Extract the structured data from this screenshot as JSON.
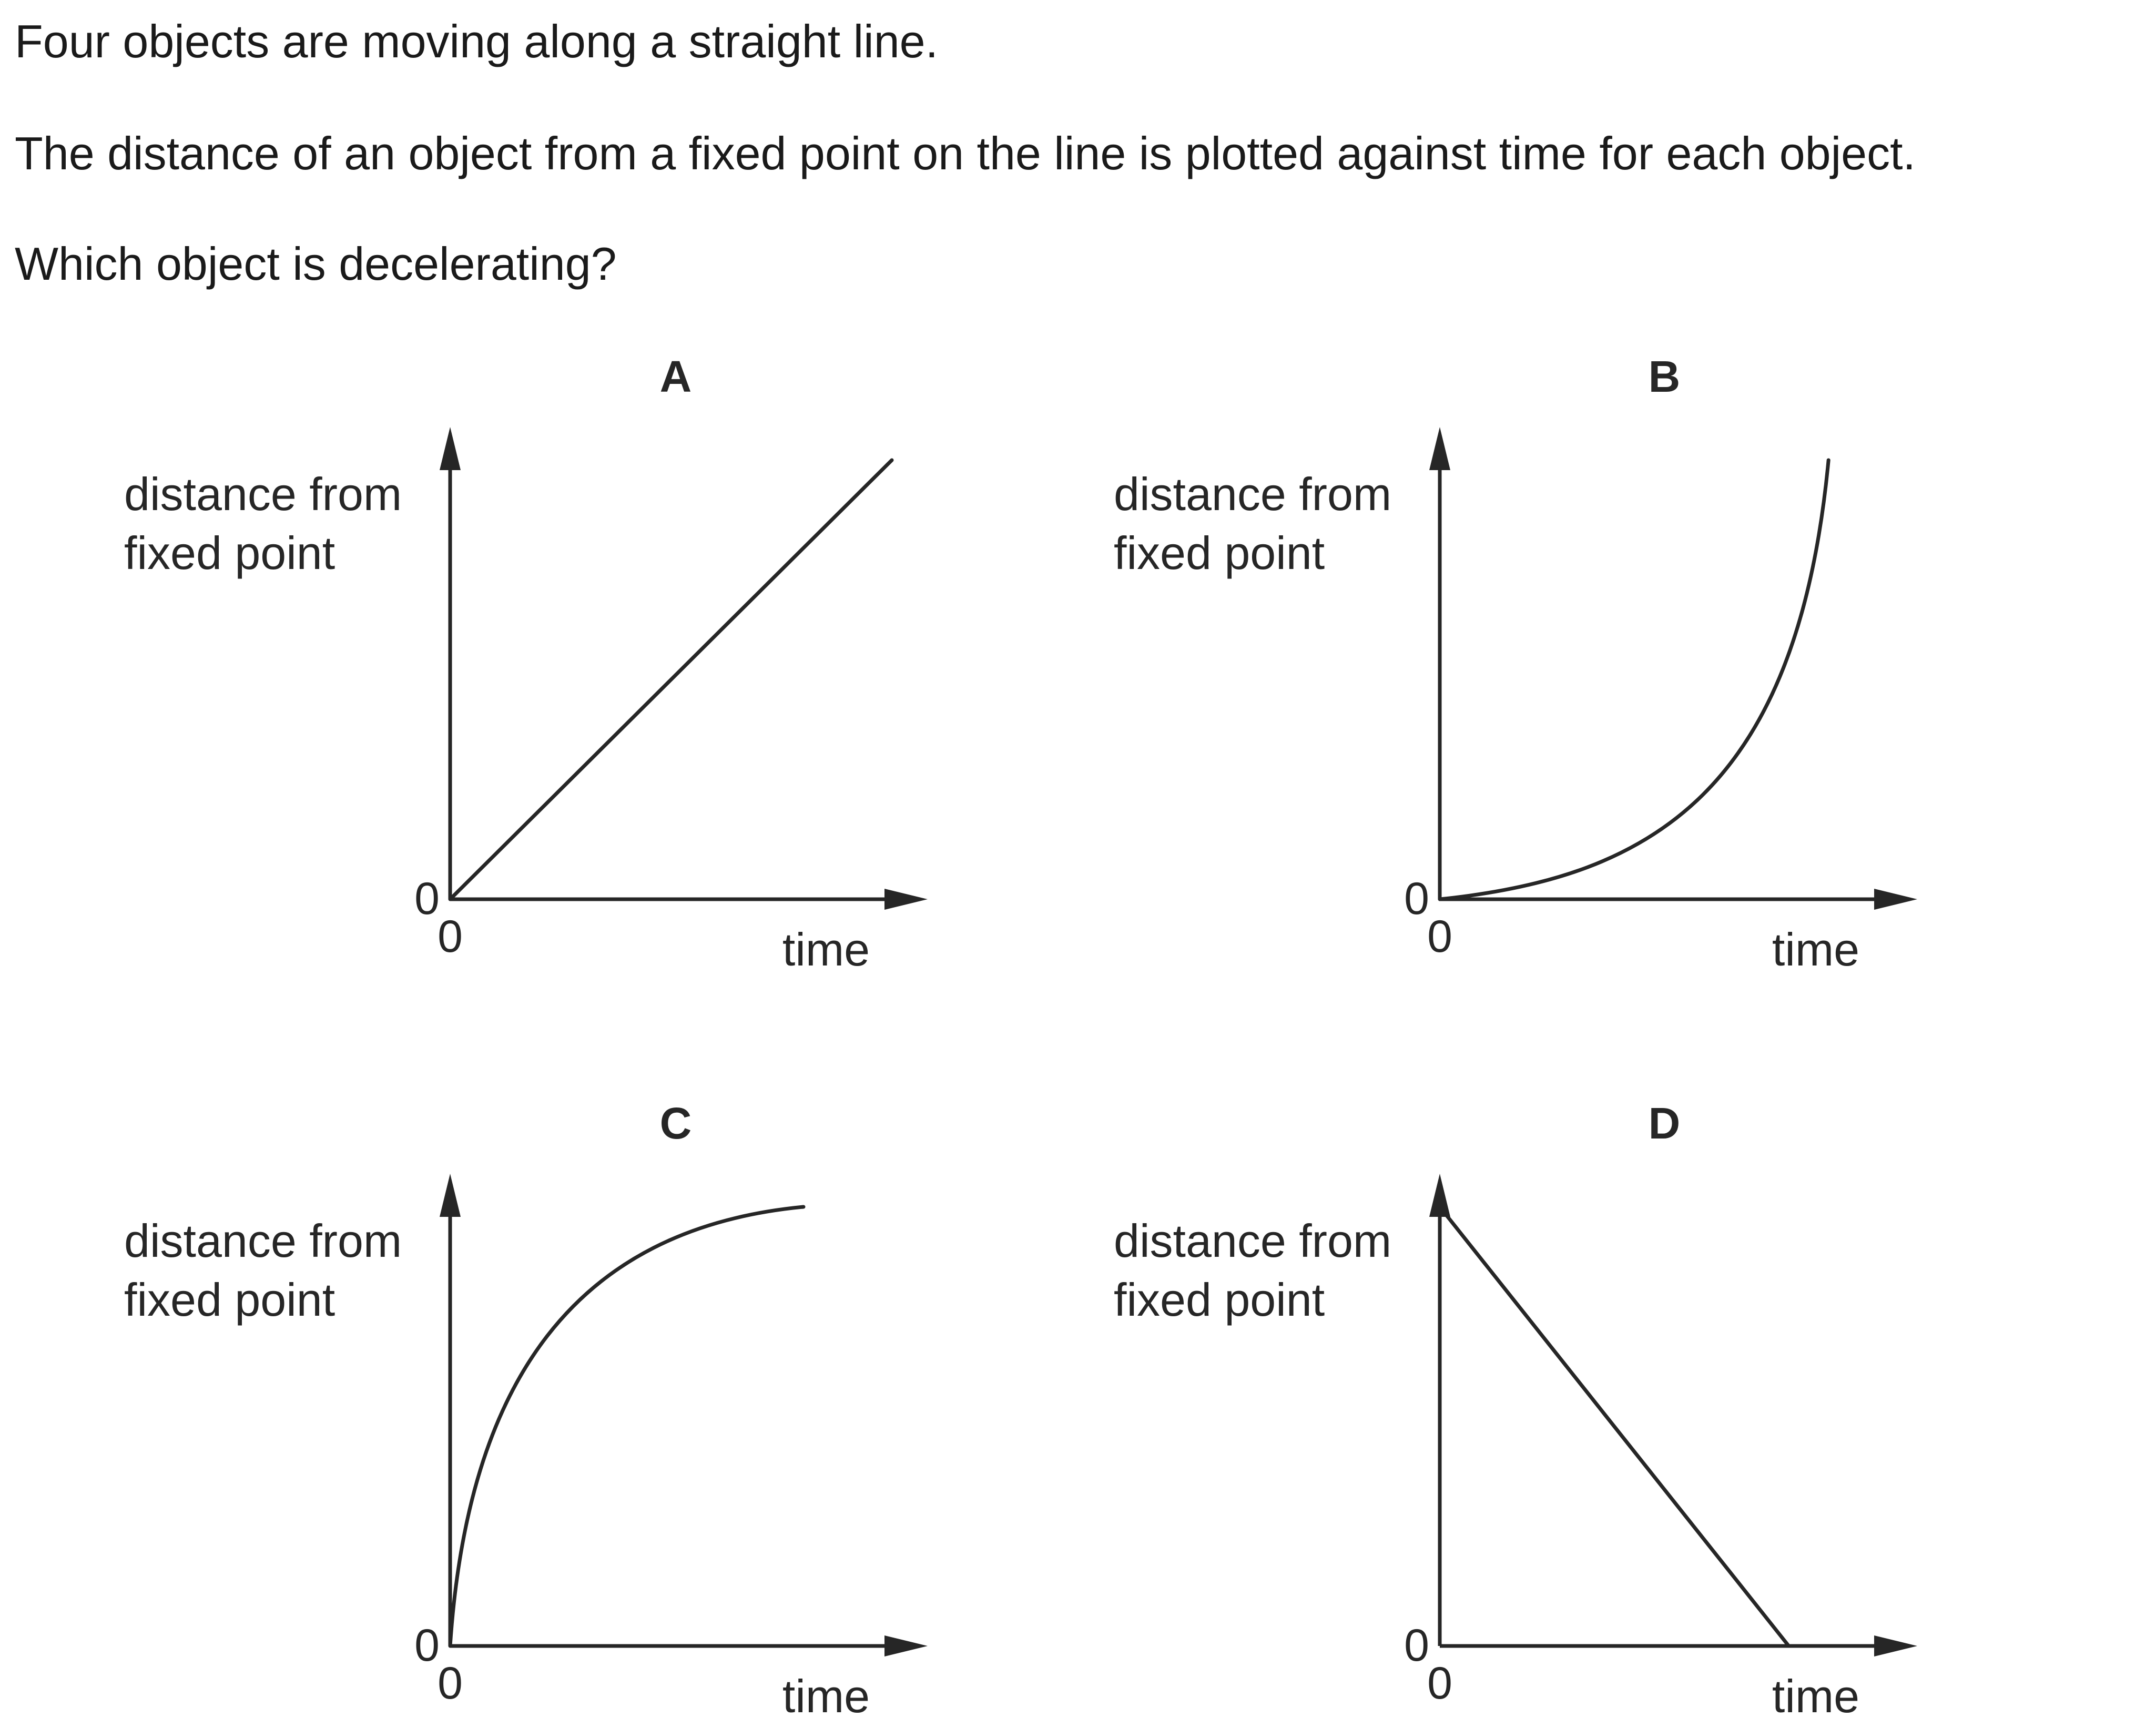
{
  "question": {
    "line1": "Four objects are moving along a straight line.",
    "line2": "The distance of an object from a fixed point on the line is plotted against time for each object.",
    "line3": "Which object is decelerating?"
  },
  "chart_data": [
    {
      "type": "line",
      "panel": "A",
      "xlabel": "time",
      "ylabel": [
        "distance from",
        "fixed point"
      ],
      "x_origin_label": "0",
      "y_origin_label": "0",
      "curve": "straight line increasing from origin",
      "x": [
        0,
        1
      ],
      "y": [
        0,
        1
      ]
    },
    {
      "type": "line",
      "panel": "B",
      "xlabel": "time",
      "ylabel": [
        "distance from",
        "fixed point"
      ],
      "x_origin_label": "0",
      "y_origin_label": "0",
      "curve": "curve increasing with increasing gradient",
      "x": [
        0,
        0.25,
        0.5,
        0.65,
        0.8,
        0.9,
        1
      ],
      "y": [
        0,
        0.05,
        0.17,
        0.3,
        0.5,
        0.7,
        1
      ]
    },
    {
      "type": "line",
      "panel": "C",
      "xlabel": "time",
      "ylabel": [
        "distance from",
        "fixed point"
      ],
      "x_origin_label": "0",
      "y_origin_label": "0",
      "curve": "curve increasing with decreasing gradient",
      "x": [
        0,
        0.1,
        0.25,
        0.5,
        0.75,
        1
      ],
      "y": [
        0,
        0.45,
        0.65,
        0.84,
        0.94,
        1
      ]
    },
    {
      "type": "line",
      "panel": "D",
      "xlabel": "time",
      "ylabel": [
        "distance from",
        "fixed point"
      ],
      "x_origin_label": "0",
      "y_origin_label": "0",
      "curve": "straight line decreasing to zero",
      "x": [
        0,
        1
      ],
      "y": [
        1,
        0
      ]
    }
  ],
  "colors": {
    "ink": "#262626",
    "background": "#ffffff"
  }
}
